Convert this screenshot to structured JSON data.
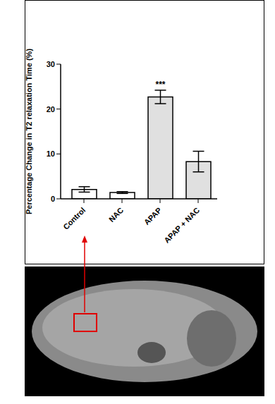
{
  "chart_data": {
    "type": "bar",
    "y_label": "Percentage Change in T2 relaxation Time (%)",
    "categories": [
      "Control",
      "NAC",
      "APAP",
      "APAP + NAC"
    ],
    "values": [
      2.1,
      1.4,
      22.7,
      8.3
    ],
    "errors": [
      0.6,
      0.2,
      1.5,
      2.3
    ],
    "colors": [
      "#ffffff",
      "#ffffff",
      "#e0e0e0",
      "#e0e0e0"
    ],
    "ylim": [
      0,
      30
    ],
    "yticks": [
      0,
      10,
      20,
      30
    ],
    "grid": false,
    "annotations": [
      {
        "category": "APAP",
        "text": "***"
      }
    ]
  }
}
